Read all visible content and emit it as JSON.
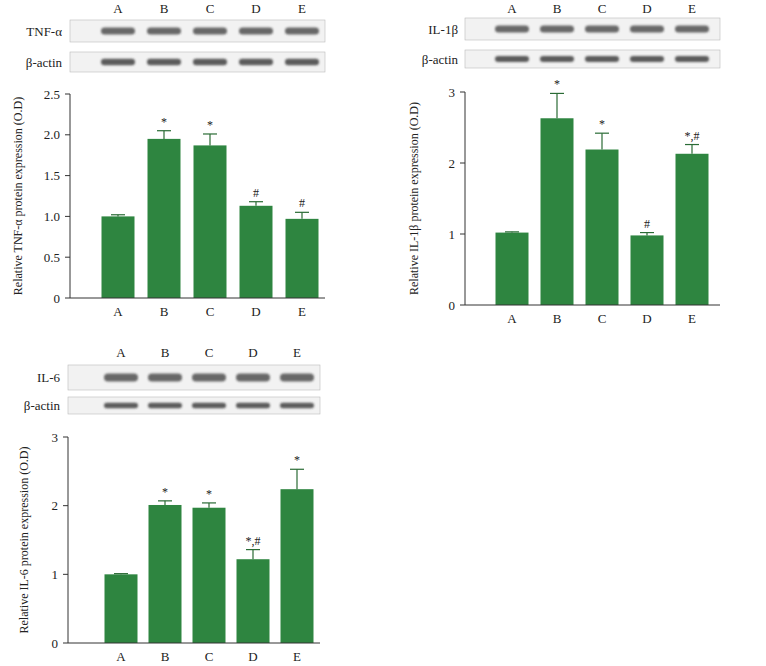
{
  "chart_data": [
    {
      "type": "bar",
      "blot": {
        "target": "TNF-α",
        "control": "β-actin"
      },
      "y_label": "Relative TNF-α protein expression (O.D)",
      "categories": [
        "A",
        "B",
        "C",
        "D",
        "E"
      ],
      "values": [
        1.0,
        1.95,
        1.87,
        1.13,
        0.97
      ],
      "errors": [
        0.02,
        0.1,
        0.14,
        0.05,
        0.08
      ],
      "annotations": [
        null,
        "*",
        "*",
        "#",
        "#"
      ],
      "color": "#2e8540",
      "ylim": [
        0,
        2.5
      ],
      "yticks": [
        0,
        0.5,
        {
          "value": 1,
          "label": "1.0"
        },
        1.5,
        {
          "value": 2,
          "label": "2.0"
        },
        2.5
      ]
    },
    {
      "type": "bar",
      "blot": {
        "target": "IL-1β",
        "control": "β-actin"
      },
      "y_label": "Relative IL-1β protein expression (O.D)",
      "categories": [
        "A",
        "B",
        "C",
        "D",
        "E"
      ],
      "values": [
        1.02,
        2.63,
        2.19,
        0.98,
        2.13
      ],
      "errors": [
        0.01,
        0.35,
        0.23,
        0.04,
        0.13
      ],
      "annotations": [
        null,
        "*",
        "*",
        "#",
        "*,#"
      ],
      "color": "#2e8540",
      "ylim": [
        0,
        3
      ],
      "yticks": [
        0,
        1,
        2,
        3
      ]
    },
    {
      "type": "bar",
      "blot": {
        "target": "IL-6",
        "control": "β-actin"
      },
      "y_label": "Relative IL-6 protein expression (O.D)",
      "categories": [
        "A",
        "B",
        "C",
        "D",
        "E"
      ],
      "values": [
        1.0,
        2.01,
        1.97,
        1.22,
        2.24
      ],
      "errors": [
        0.01,
        0.06,
        0.07,
        0.14,
        0.29
      ],
      "annotations": [
        null,
        "*",
        "*",
        "*,#",
        "*"
      ],
      "color": "#2e8540",
      "ylim": [
        0,
        3
      ],
      "yticks": [
        0,
        1,
        2,
        3
      ]
    }
  ]
}
